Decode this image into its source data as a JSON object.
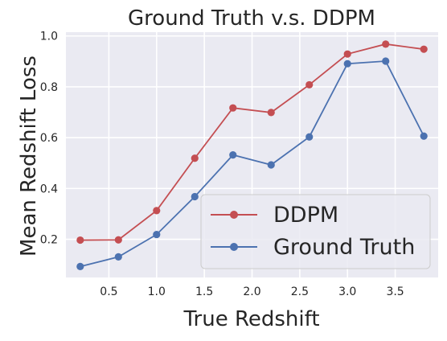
{
  "chart_data": {
    "type": "line",
    "title": "Ground Truth v.s. DDPM",
    "xlabel": "True Redshift",
    "ylabel": "Mean Redshift Loss",
    "xlim": [
      0.05,
      3.95
    ],
    "ylim": [
      0.05,
      1.015
    ],
    "x_ticks": [
      0.5,
      1.0,
      1.5,
      2.0,
      2.5,
      3.0,
      3.5
    ],
    "y_ticks": [
      0.2,
      0.4,
      0.6,
      0.8,
      1.0
    ],
    "grid": true,
    "legend_position": "lower-right",
    "x": [
      0.2,
      0.6,
      1.0,
      1.4,
      1.8,
      2.2,
      2.6,
      3.0,
      3.4,
      3.8
    ],
    "series": [
      {
        "name": "DDPM",
        "color": "#c44e52",
        "values": [
          0.197,
          0.198,
          0.313,
          0.519,
          0.717,
          0.699,
          0.808,
          0.929,
          0.968,
          0.948
        ]
      },
      {
        "name": "Ground Truth",
        "color": "#4c72b0",
        "values": [
          0.093,
          0.131,
          0.219,
          0.368,
          0.532,
          0.493,
          0.603,
          0.891,
          0.901,
          0.606
        ]
      }
    ]
  }
}
